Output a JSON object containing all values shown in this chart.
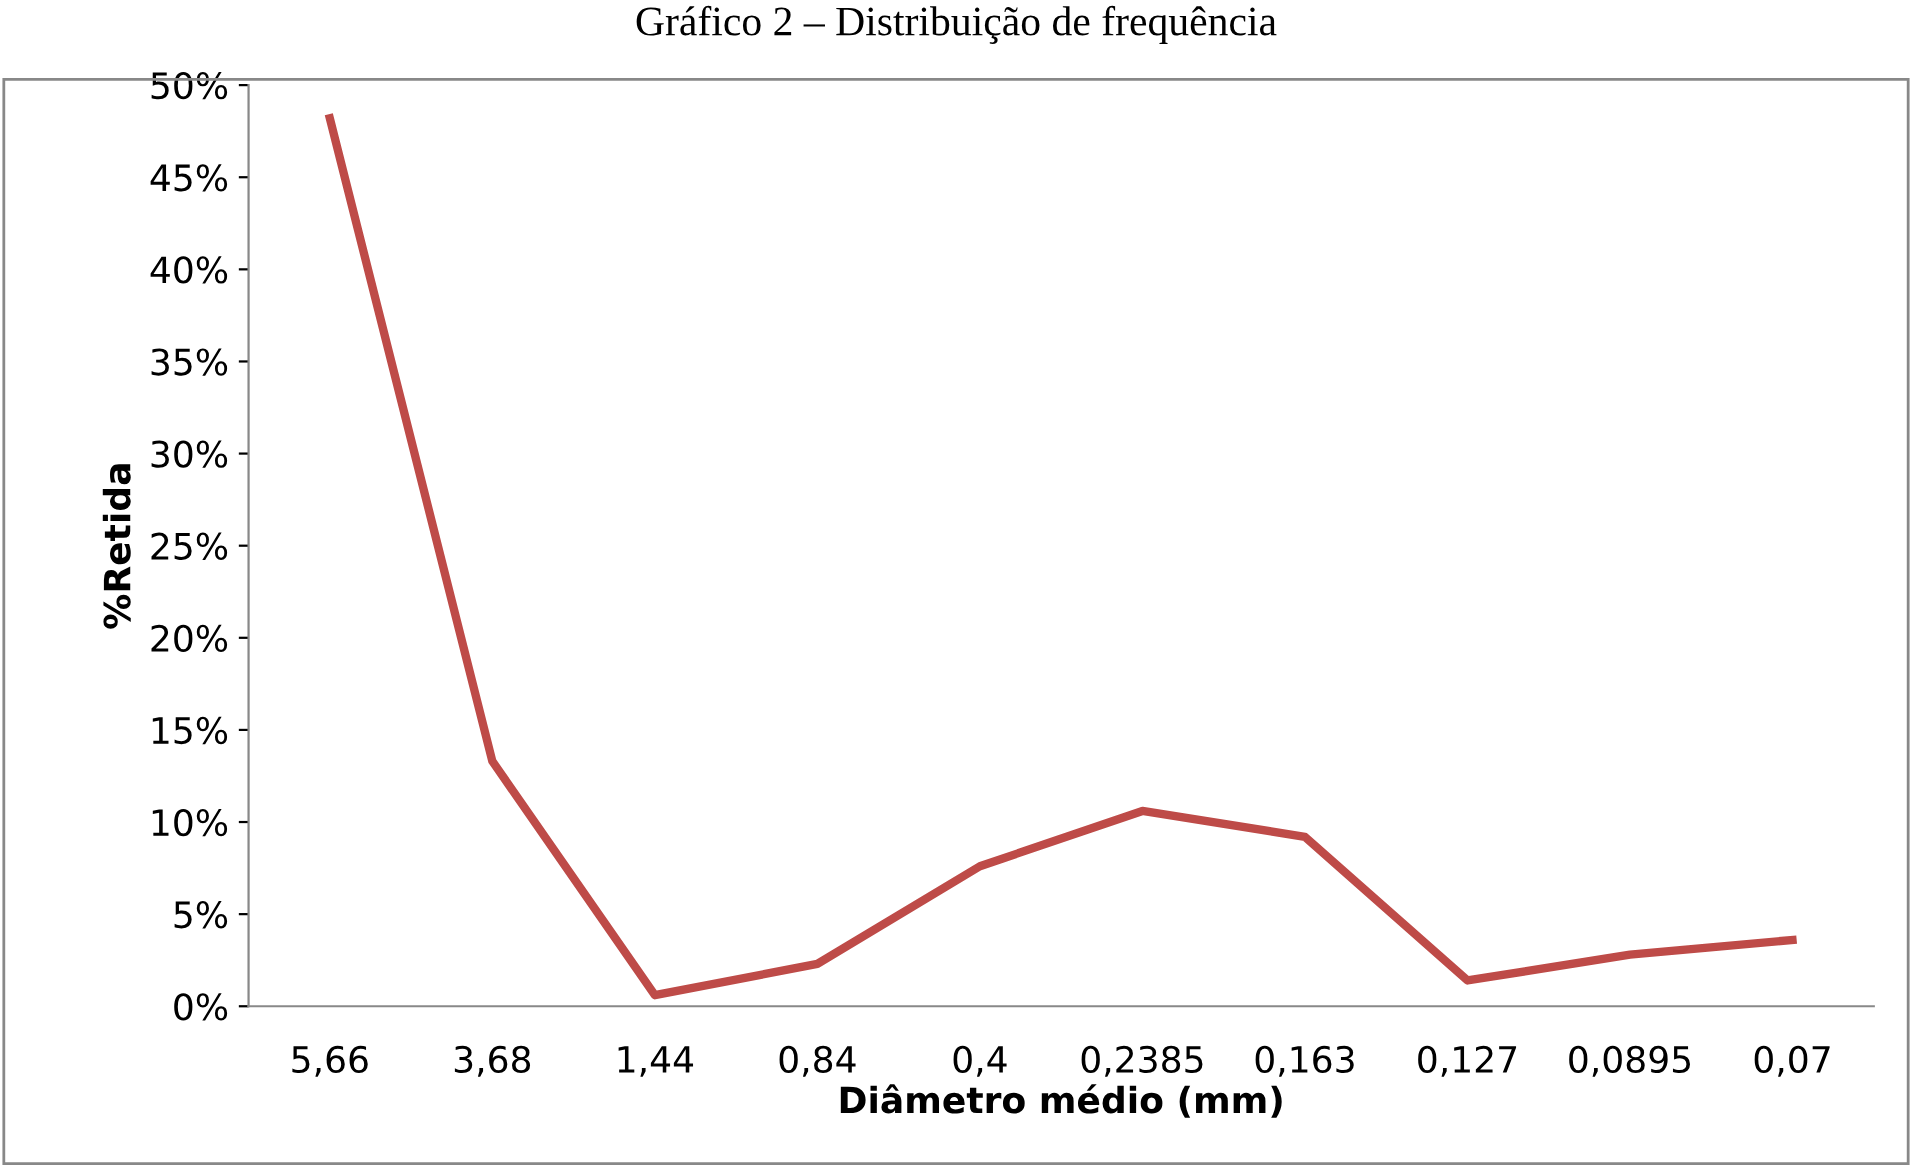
{
  "chart_data": {
    "type": "line",
    "title": "Gráfico 2 – Distribuição de frequência",
    "xlabel": "Diâmetro médio (mm)",
    "ylabel": "%Retida",
    "categories": [
      "5,66",
      "3,68",
      "1,44",
      "0,84",
      "0,4",
      "0,2385",
      "0,163",
      "0,127",
      "0,0895",
      "0,07"
    ],
    "series": [
      {
        "color": "#be4b48",
        "values": [
          48.2,
          13.3,
          0.6,
          2.3,
          7.6,
          10.6,
          9.2,
          1.4,
          2.8,
          3.6
        ]
      }
    ],
    "ylim": [
      0,
      50
    ],
    "yticks": [
      {
        "value": 0,
        "label": "0%"
      },
      {
        "value": 5,
        "label": "5%"
      },
      {
        "value": 10,
        "label": "10%"
      },
      {
        "value": 15,
        "label": "15%"
      },
      {
        "value": 20,
        "label": "20%"
      },
      {
        "value": 25,
        "label": "25%"
      },
      {
        "value": 30,
        "label": "30%"
      },
      {
        "value": 35,
        "label": "35%"
      },
      {
        "value": 40,
        "label": "40%"
      },
      {
        "value": 45,
        "label": "45%"
      },
      {
        "value": 50,
        "label": "50%"
      }
    ],
    "grid": false,
    "marker": "none",
    "line_style": "solid"
  }
}
